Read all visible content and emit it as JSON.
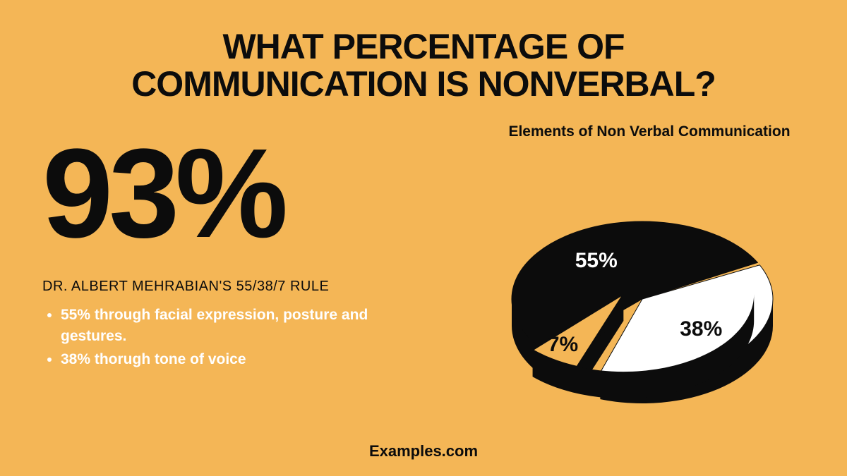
{
  "canvas": {
    "background_color": "#f4b656",
    "text_color": "#0c0c0c",
    "bullet_color": "#ffffff"
  },
  "title": {
    "line1": "WHAT PERCENTAGE OF",
    "line2": "COMMUNICATION IS NONVERBAL?",
    "fontsize": 50
  },
  "stat": {
    "value": "93%",
    "fontsize": 180
  },
  "subtitle": {
    "text": "DR. ALBERT MEHRABIAN'S 55/38/7 RULE",
    "fontsize": 20
  },
  "bullets": {
    "items": [
      "55% through facial expression, posture and gestures.",
      "38% thorugh tone of voice"
    ],
    "fontsize": 21
  },
  "chart": {
    "title": "Elements of Non Verbal Communication",
    "title_fontsize": 21,
    "type": "pie",
    "slices": [
      {
        "label": "55%",
        "value": 55,
        "fill": "#0c0c0c",
        "label_color": "#ffffff"
      },
      {
        "label": "38%",
        "value": 38,
        "fill": "#ffffff",
        "label_color": "#0c0c0c"
      },
      {
        "label": "7%",
        "value": 7,
        "fill": "#f4b656",
        "label_color": "#0c0c0c",
        "exploded": true
      }
    ],
    "side_color": "#0c0c0c",
    "outline_color": "#0c0c0c"
  },
  "footer": {
    "text": "Examples.com",
    "fontsize": 22
  }
}
